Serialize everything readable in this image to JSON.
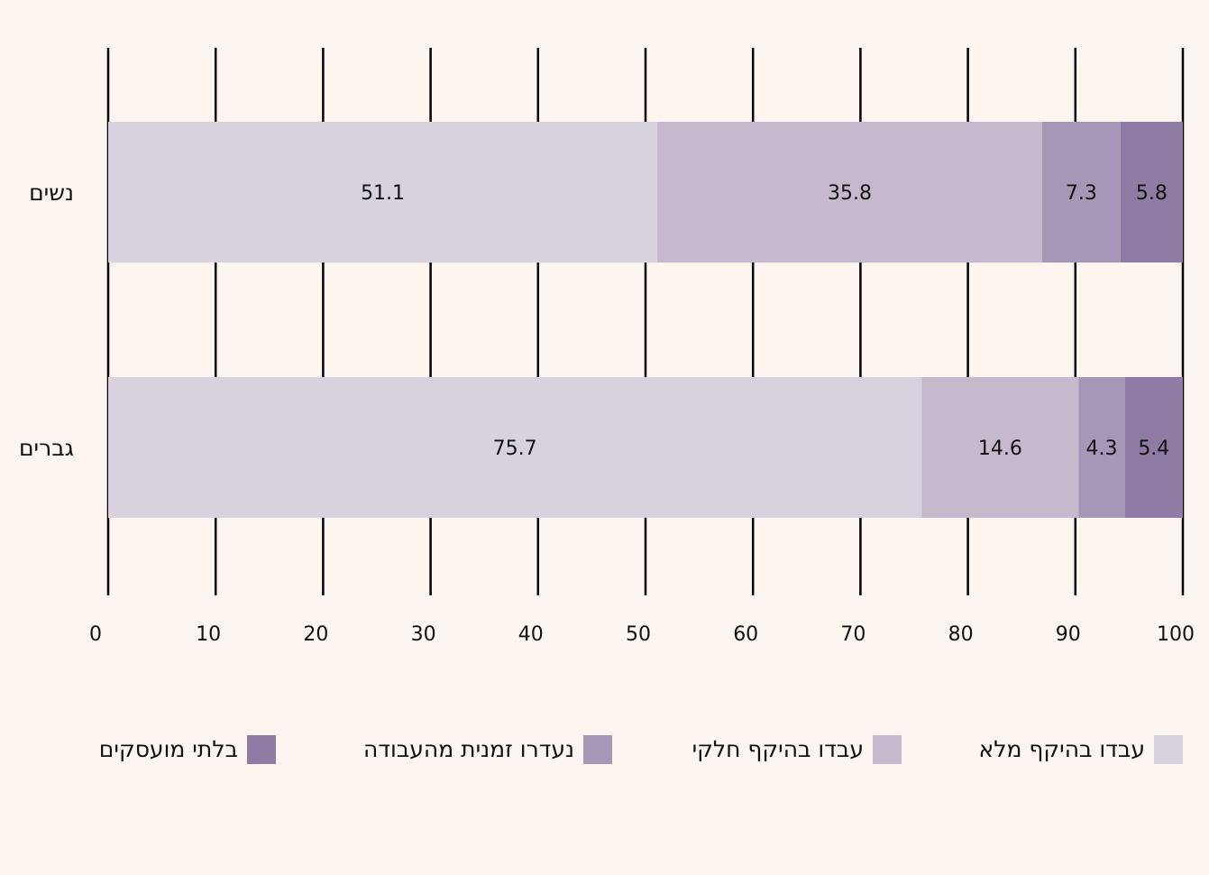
{
  "chart_data": {
    "type": "bar",
    "orientation": "horizontal",
    "stacked": true,
    "categories": [
      "נשים",
      "גברים"
    ],
    "series": [
      {
        "name": "עבדו בהיקף מלא",
        "values": [
          51.1,
          75.7
        ],
        "color": "#d8d2de"
      },
      {
        "name": "עבדו בהיקף חלקי",
        "values": [
          35.8,
          14.6
        ],
        "color": "#c6b9cd"
      },
      {
        "name": "נעדרו זמנית מהעבודה",
        "values": [
          7.3,
          4.3
        ],
        "color": "#a697b7"
      },
      {
        "name": "בלתי מועסקים",
        "values": [
          5.8,
          5.4
        ],
        "color": "#8f7ca4"
      }
    ],
    "xlim": [
      0,
      100
    ],
    "xticks": [
      "0",
      "10",
      "20",
      "30",
      "40",
      "50",
      "60",
      "70",
      "80",
      "90",
      "100"
    ],
    "grid": true,
    "legend_position": "bottom",
    "title": "",
    "xlabel": "",
    "ylabel": ""
  }
}
